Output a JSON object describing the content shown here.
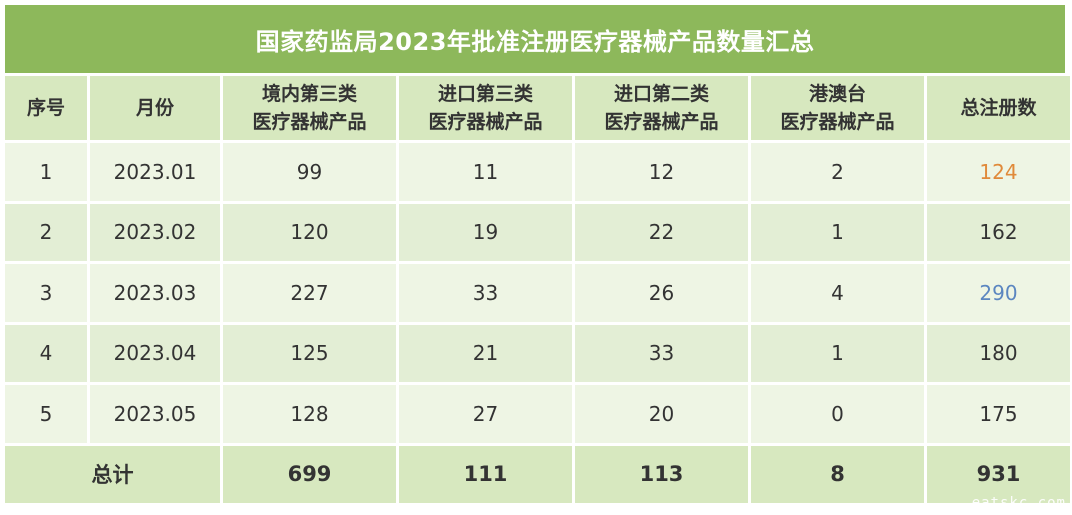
{
  "title": "国家药监局2023年批准注册医疗器械产品数量汇总",
  "table": {
    "headers": [
      {
        "line1": "序号",
        "line2": ""
      },
      {
        "line1": "月份",
        "line2": ""
      },
      {
        "line1": "境内第三类",
        "line2": "医疗器械产品"
      },
      {
        "line1": "进口第三类",
        "line2": "医疗器械产品"
      },
      {
        "line1": "进口第二类",
        "line2": "医疗器械产品"
      },
      {
        "line1": "港澳台",
        "line2": "医疗器械产品"
      },
      {
        "line1": "总注册数",
        "line2": ""
      }
    ],
    "rows": [
      {
        "index": "1",
        "month": "2023.01",
        "domestic_class3": "99",
        "import_class3": "11",
        "import_class2": "12",
        "hk_macao_taiwan": "2",
        "total": "124"
      },
      {
        "index": "2",
        "month": "2023.02",
        "domestic_class3": "120",
        "import_class3": "19",
        "import_class2": "22",
        "hk_macao_taiwan": "1",
        "total": "162"
      },
      {
        "index": "3",
        "month": "2023.03",
        "domestic_class3": "227",
        "import_class3": "33",
        "import_class2": "26",
        "hk_macao_taiwan": "4",
        "total": "290"
      },
      {
        "index": "4",
        "month": "2023.04",
        "domestic_class3": "125",
        "import_class3": "21",
        "import_class2": "33",
        "hk_macao_taiwan": "1",
        "total": "180"
      },
      {
        "index": "5",
        "month": "2023.05",
        "domestic_class3": "128",
        "import_class3": "27",
        "import_class2": "20",
        "hk_macao_taiwan": "0",
        "total": "175"
      }
    ],
    "footer": {
      "label": "总计",
      "domestic_class3": "699",
      "import_class3": "111",
      "import_class2": "113",
      "hk_macao_taiwan": "8",
      "total": "931"
    }
  },
  "watermark": "eatskc.com",
  "colors": {
    "title_bg": "#8db85b",
    "header_bg": "#d7e8bf",
    "row_light_bg": "#eef5e4",
    "row_mid_bg": "#e3eed5",
    "highlight_orange": "#e08a3a",
    "highlight_blue": "#5b86c0"
  }
}
